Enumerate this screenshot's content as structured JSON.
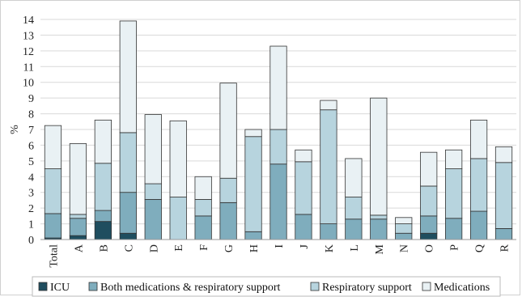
{
  "chart_data": {
    "type": "bar",
    "stacked": true,
    "title": "",
    "xlabel": "",
    "ylabel": "%",
    "ylim": [
      0,
      14
    ],
    "yticks": [
      0,
      1,
      2,
      3,
      4,
      5,
      6,
      7,
      8,
      9,
      10,
      11,
      12,
      13,
      14
    ],
    "grid": true,
    "legend_position": "bottom",
    "categories": [
      "Total",
      "A",
      "B",
      "C",
      "D",
      "E",
      "F",
      "G",
      "H",
      "I",
      "J",
      "K",
      "L",
      "M",
      "N",
      "O",
      "P",
      "Q",
      "R"
    ],
    "series": [
      {
        "name": "ICU",
        "color": "#1f4e5f",
        "values": [
          0.1,
          0.25,
          1.15,
          0.4,
          0,
          0,
          0,
          0,
          0,
          0,
          0,
          0,
          0,
          0,
          0,
          0.4,
          0,
          0,
          0
        ]
      },
      {
        "name": "Both medications & respiratory support",
        "color": "#7fadbd",
        "values": [
          1.55,
          1.1,
          0.7,
          2.6,
          2.55,
          0,
          1.5,
          2.35,
          0.5,
          4.8,
          1.6,
          1.0,
          1.3,
          1.3,
          0.4,
          1.1,
          1.35,
          1.8,
          0.7
        ]
      },
      {
        "name": "Respiratory support",
        "color": "#b7d4de",
        "values": [
          2.85,
          0.25,
          3.0,
          3.8,
          1.0,
          2.7,
          1.05,
          1.55,
          6.05,
          2.2,
          3.35,
          7.25,
          1.4,
          0.25,
          0.6,
          1.9,
          3.15,
          3.35,
          4.2
        ]
      },
      {
        "name": "Medications",
        "color": "#e9f1f4",
        "values": [
          2.75,
          4.5,
          2.75,
          7.1,
          4.4,
          4.85,
          1.45,
          6.05,
          0.45,
          5.3,
          0.75,
          0.6,
          2.45,
          7.45,
          0.4,
          2.15,
          1.2,
          2.45,
          1.0
        ]
      }
    ]
  }
}
